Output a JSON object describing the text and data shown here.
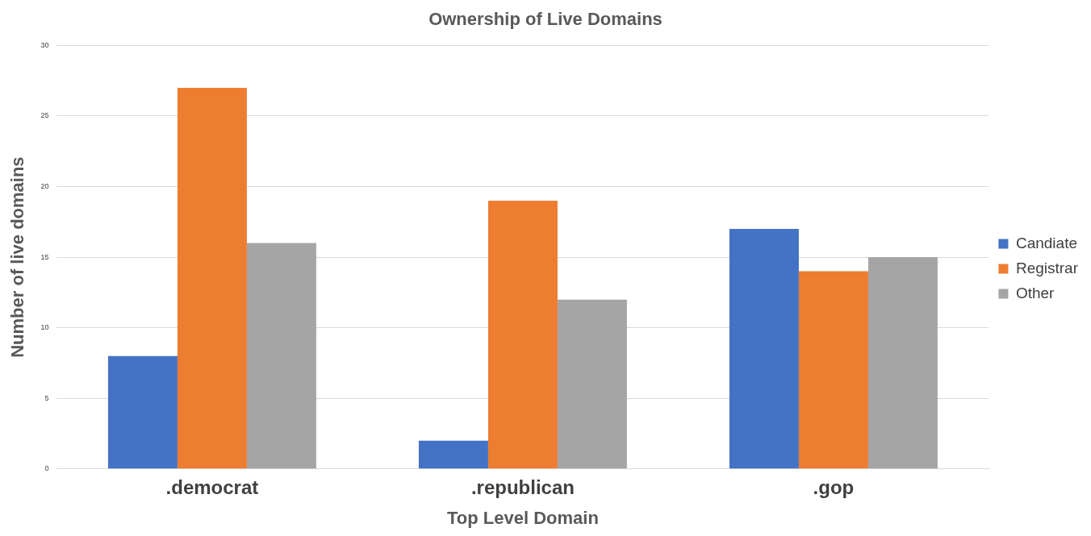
{
  "chart_data": {
    "type": "bar",
    "title": "Ownership of Live Domains",
    "xlabel": "Top Level Domain",
    "ylabel": "Number of live domains",
    "categories": [
      ".democrat",
      ".republican",
      ".gop"
    ],
    "series": [
      {
        "name": "Candiate",
        "color": "#4472c4",
        "values": [
          8,
          2,
          17
        ]
      },
      {
        "name": "Registrar",
        "color": "#ed7d31",
        "values": [
          27,
          19,
          14
        ]
      },
      {
        "name": "Other",
        "color": "#a5a5a5",
        "values": [
          16,
          12,
          15
        ]
      }
    ],
    "ylim": [
      0,
      30
    ],
    "yticks": [
      0,
      5,
      10,
      15,
      20,
      25,
      30
    ],
    "grid": "y",
    "legend": "right"
  }
}
